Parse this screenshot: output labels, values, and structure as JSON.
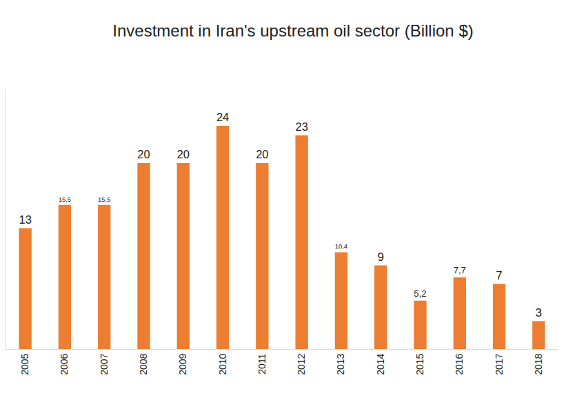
{
  "chart_data": {
    "type": "bar",
    "title": "Investment in Iran's upstream oil sector (Billion $)",
    "categories": [
      "2005",
      "2006",
      "2007",
      "2008",
      "2009",
      "2010",
      "2011",
      "2012",
      "2013",
      "2014",
      "2015",
      "2016",
      "2017",
      "2018"
    ],
    "values": [
      13,
      15.5,
      15.5,
      20,
      20,
      24,
      20,
      23,
      10.4,
      9,
      5.2,
      7.7,
      7,
      3
    ],
    "value_labels": [
      "13",
      "15,5",
      "15,5",
      "20",
      "20",
      "24",
      "20",
      "23",
      "10,4",
      "9",
      "5,2",
      "7,7",
      "7",
      "3"
    ],
    "color": "#ed7d31",
    "ylim": [
      0,
      28
    ],
    "grid": false,
    "data_labels": true,
    "tick_labels": "x"
  }
}
